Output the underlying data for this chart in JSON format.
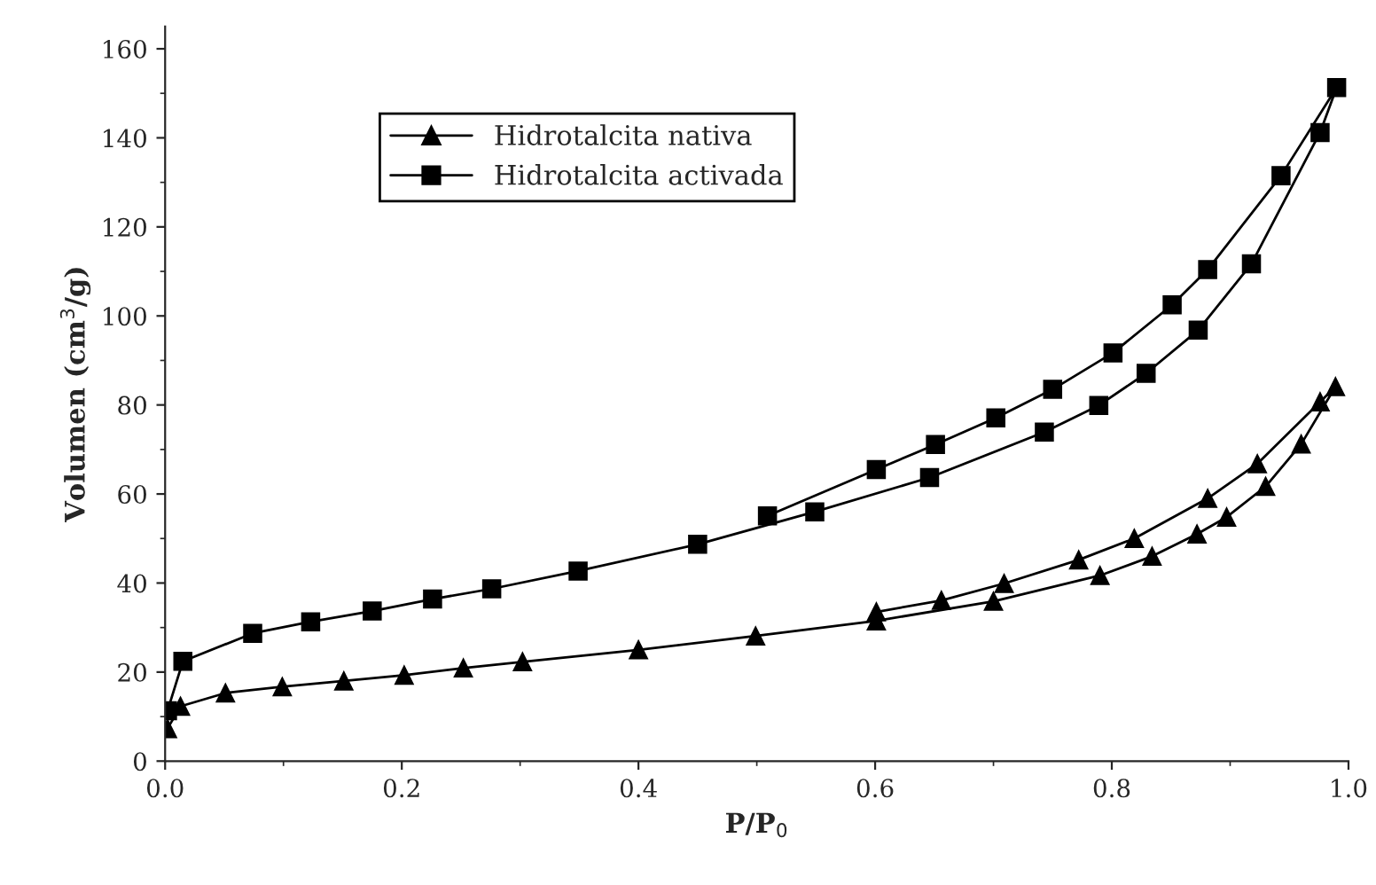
{
  "chart_data": {
    "type": "line",
    "xlabel": "P/P$_{0}$",
    "ylabel": "Volumen (cm$^{3}$/g)",
    "xlim": [
      0,
      1
    ],
    "ylim": [
      0,
      165
    ],
    "xticks": [
      {
        "value": 0,
        "label": "0.0"
      },
      {
        "value": 0.2,
        "label": "0.2"
      },
      {
        "value": 0.4,
        "label": "0.4"
      },
      {
        "value": 0.6,
        "label": "0.6"
      },
      {
        "value": 0.8,
        "label": "0.8"
      },
      {
        "value": 1,
        "label": "1.0"
      }
    ],
    "yticks": [
      0,
      20,
      40,
      60,
      80,
      100,
      120,
      140,
      160
    ],
    "grid": false,
    "legend": "top left",
    "line_style": "solid",
    "series": [
      {
        "name": "Hidrotalcita nativa",
        "color": "#000000",
        "marker": "triangle",
        "x": [
          0.002,
          0.013,
          0.051,
          0.099,
          0.151,
          0.202,
          0.252,
          0.302,
          0.4,
          0.499,
          0.601,
          0.7,
          0.79,
          0.834,
          0.872,
          0.897,
          0.93,
          0.96,
          0.989,
          0.976,
          0.923,
          0.881,
          0.819,
          0.772,
          0.709,
          0.656,
          0.601
        ],
        "values": [
          7.3,
          12.3,
          15.3,
          16.7,
          18,
          19.3,
          20.9,
          22.3,
          25,
          28.1,
          31.5,
          35.9,
          41.7,
          46,
          51,
          54.8,
          61.7,
          71.2,
          84.1,
          80.7,
          66.8,
          59,
          50,
          45.2,
          39.9,
          36.1,
          33.5
        ]
      },
      {
        "name": "Hidrotalcita activada",
        "color": "#000000",
        "marker": "square",
        "x": [
          0.002,
          0.015,
          0.074,
          0.123,
          0.175,
          0.226,
          0.276,
          0.349,
          0.45,
          0.549,
          0.646,
          0.743,
          0.789,
          0.829,
          0.873,
          0.918,
          0.976,
          0.99,
          0.943,
          0.881,
          0.851,
          0.801,
          0.75,
          0.702,
          0.651,
          0.601,
          0.509
        ],
        "values": [
          11.3,
          22.4,
          28.7,
          31.3,
          33.7,
          36.4,
          38.7,
          42.7,
          48.7,
          56,
          63.7,
          73.9,
          79.9,
          87.1,
          96.8,
          111.7,
          141.2,
          151.3,
          131.5,
          110.4,
          102.5,
          91.7,
          83.5,
          77.1,
          71.1,
          65.5,
          55.1
        ]
      }
    ]
  }
}
